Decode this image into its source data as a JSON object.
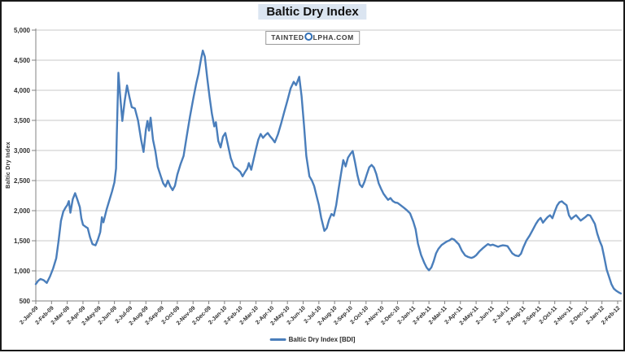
{
  "header": {
    "title": "Baltic Dry Index"
  },
  "watermark": {
    "text_before": "TAINTED",
    "alpha_icon": "alpha-ring-icon",
    "text_after": "LPHA.COM"
  },
  "legend": {
    "label": "Baltic Dry Index [BDI]"
  },
  "colors": {
    "line": "#4a7ebb",
    "title_highlight": "#dbe5f1",
    "gridline": "#c9c9c9",
    "axis": "#808080",
    "alpha_ring": "#2f6eb5"
  },
  "chart_data": {
    "type": "line",
    "title": "Baltic Dry Index",
    "ylabel": "Baltic Dry Index",
    "xlabel": "",
    "ylim": [
      500,
      5000
    ],
    "grid": true,
    "legend_position": "bottom-center",
    "x_unit": "months since 2-Jan-09 (fractional)",
    "y_ticks": [
      500,
      1000,
      1500,
      2000,
      2500,
      3000,
      3500,
      4000,
      4500,
      5000
    ],
    "y_tick_labels": [
      "500",
      "1,000",
      "1,500",
      "2,000",
      "2,500",
      "3,000",
      "3,500",
      "4,000",
      "4,500",
      "5,000"
    ],
    "x_tick_labels": [
      "2-Jan-09",
      "2-Feb-09",
      "2-Mar-09",
      "2-Apr-09",
      "2-May-09",
      "2-Jun-09",
      "2-Jul-09",
      "2-Aug-09",
      "2-Sep-09",
      "2-Oct-09",
      "2-Nov-09",
      "2-Dec-09",
      "2-Jan-10",
      "2-Feb-10",
      "2-Mar-10",
      "2-Apr-10",
      "2-May-10",
      "2-Jun-10",
      "2-Jul-10",
      "2-Aug-10",
      "2-Sep-10",
      "2-Oct-10",
      "2-Nov-10",
      "2-Dec-10",
      "2-Jan-11",
      "2-Feb-11",
      "2-Mar-11",
      "2-Apr-11",
      "2-May-11",
      "2-Jun-11",
      "2-Jul-11",
      "2-Aug-11",
      "2-Sep-11",
      "2-Oct-11",
      "2-Nov-11",
      "2-Dec-11",
      "2-Jan-12",
      "2-Feb-12"
    ],
    "series": [
      {
        "name": "Baltic Dry Index [BDI]",
        "color": "#4a7ebb",
        "points": [
          [
            0,
            780
          ],
          [
            0.15,
            835
          ],
          [
            0.3,
            865
          ],
          [
            0.5,
            845
          ],
          [
            0.7,
            800
          ],
          [
            0.9,
            905
          ],
          [
            1.1,
            1040
          ],
          [
            1.3,
            1210
          ],
          [
            1.45,
            1500
          ],
          [
            1.6,
            1830
          ],
          [
            1.75,
            1985
          ],
          [
            1.9,
            2055
          ],
          [
            2.0,
            2090
          ],
          [
            2.1,
            2160
          ],
          [
            2.2,
            1965
          ],
          [
            2.35,
            2190
          ],
          [
            2.5,
            2290
          ],
          [
            2.65,
            2180
          ],
          [
            2.8,
            2060
          ],
          [
            2.9,
            1870
          ],
          [
            3.0,
            1765
          ],
          [
            3.15,
            1735
          ],
          [
            3.3,
            1710
          ],
          [
            3.45,
            1555
          ],
          [
            3.6,
            1445
          ],
          [
            3.8,
            1425
          ],
          [
            3.95,
            1520
          ],
          [
            4.1,
            1645
          ],
          [
            4.2,
            1890
          ],
          [
            4.3,
            1805
          ],
          [
            4.5,
            2020
          ],
          [
            4.7,
            2190
          ],
          [
            4.85,
            2320
          ],
          [
            5.0,
            2470
          ],
          [
            5.1,
            2700
          ],
          [
            5.15,
            3250
          ],
          [
            5.25,
            4290
          ],
          [
            5.35,
            3950
          ],
          [
            5.5,
            3490
          ],
          [
            5.65,
            3820
          ],
          [
            5.8,
            4080
          ],
          [
            5.95,
            3890
          ],
          [
            6.1,
            3720
          ],
          [
            6.3,
            3700
          ],
          [
            6.5,
            3500
          ],
          [
            6.7,
            3170
          ],
          [
            6.85,
            2975
          ],
          [
            7.0,
            3350
          ],
          [
            7.1,
            3490
          ],
          [
            7.2,
            3330
          ],
          [
            7.3,
            3545
          ],
          [
            7.45,
            3180
          ],
          [
            7.6,
            2990
          ],
          [
            7.75,
            2730
          ],
          [
            7.95,
            2570
          ],
          [
            8.1,
            2455
          ],
          [
            8.25,
            2400
          ],
          [
            8.4,
            2500
          ],
          [
            8.55,
            2405
          ],
          [
            8.7,
            2340
          ],
          [
            8.85,
            2415
          ],
          [
            9.0,
            2600
          ],
          [
            9.2,
            2770
          ],
          [
            9.4,
            2910
          ],
          [
            9.6,
            3240
          ],
          [
            9.8,
            3560
          ],
          [
            10.0,
            3840
          ],
          [
            10.2,
            4110
          ],
          [
            10.35,
            4280
          ],
          [
            10.5,
            4510
          ],
          [
            10.62,
            4660
          ],
          [
            10.75,
            4560
          ],
          [
            10.9,
            4210
          ],
          [
            11.05,
            3890
          ],
          [
            11.2,
            3610
          ],
          [
            11.35,
            3400
          ],
          [
            11.45,
            3470
          ],
          [
            11.6,
            3160
          ],
          [
            11.75,
            3050
          ],
          [
            11.9,
            3230
          ],
          [
            12.05,
            3290
          ],
          [
            12.2,
            3110
          ],
          [
            12.4,
            2870
          ],
          [
            12.6,
            2730
          ],
          [
            12.8,
            2690
          ],
          [
            13.0,
            2645
          ],
          [
            13.15,
            2570
          ],
          [
            13.3,
            2640
          ],
          [
            13.45,
            2700
          ],
          [
            13.55,
            2790
          ],
          [
            13.7,
            2680
          ],
          [
            13.85,
            2850
          ],
          [
            14.0,
            3020
          ],
          [
            14.15,
            3180
          ],
          [
            14.3,
            3275
          ],
          [
            14.45,
            3210
          ],
          [
            14.6,
            3255
          ],
          [
            14.75,
            3290
          ],
          [
            14.9,
            3235
          ],
          [
            15.05,
            3190
          ],
          [
            15.2,
            3135
          ],
          [
            15.4,
            3270
          ],
          [
            15.6,
            3450
          ],
          [
            15.8,
            3640
          ],
          [
            16.0,
            3830
          ],
          [
            16.2,
            4030
          ],
          [
            16.4,
            4140
          ],
          [
            16.55,
            4085
          ],
          [
            16.75,
            4225
          ],
          [
            16.9,
            3900
          ],
          [
            17.05,
            3430
          ],
          [
            17.2,
            2910
          ],
          [
            17.4,
            2570
          ],
          [
            17.55,
            2505
          ],
          [
            17.7,
            2410
          ],
          [
            17.85,
            2250
          ],
          [
            18.0,
            2095
          ],
          [
            18.15,
            1880
          ],
          [
            18.35,
            1665
          ],
          [
            18.5,
            1710
          ],
          [
            18.65,
            1850
          ],
          [
            18.8,
            1945
          ],
          [
            18.95,
            1915
          ],
          [
            19.1,
            2090
          ],
          [
            19.25,
            2355
          ],
          [
            19.4,
            2600
          ],
          [
            19.55,
            2840
          ],
          [
            19.7,
            2735
          ],
          [
            19.85,
            2880
          ],
          [
            20.0,
            2940
          ],
          [
            20.15,
            2990
          ],
          [
            20.3,
            2800
          ],
          [
            20.45,
            2590
          ],
          [
            20.6,
            2435
          ],
          [
            20.75,
            2390
          ],
          [
            20.9,
            2480
          ],
          [
            21.05,
            2605
          ],
          [
            21.2,
            2720
          ],
          [
            21.35,
            2760
          ],
          [
            21.5,
            2715
          ],
          [
            21.65,
            2610
          ],
          [
            21.8,
            2455
          ],
          [
            21.95,
            2365
          ],
          [
            22.1,
            2285
          ],
          [
            22.25,
            2230
          ],
          [
            22.4,
            2180
          ],
          [
            22.55,
            2210
          ],
          [
            22.7,
            2160
          ],
          [
            22.85,
            2135
          ],
          [
            23.0,
            2130
          ],
          [
            23.2,
            2090
          ],
          [
            23.4,
            2050
          ],
          [
            23.6,
            2005
          ],
          [
            23.8,
            1955
          ],
          [
            24.0,
            1820
          ],
          [
            24.15,
            1690
          ],
          [
            24.3,
            1450
          ],
          [
            24.5,
            1265
          ],
          [
            24.7,
            1135
          ],
          [
            24.85,
            1055
          ],
          [
            25.0,
            1010
          ],
          [
            25.15,
            1055
          ],
          [
            25.3,
            1160
          ],
          [
            25.45,
            1290
          ],
          [
            25.6,
            1365
          ],
          [
            25.8,
            1430
          ],
          [
            26.0,
            1465
          ],
          [
            26.15,
            1490
          ],
          [
            26.3,
            1505
          ],
          [
            26.45,
            1535
          ],
          [
            26.6,
            1520
          ],
          [
            26.75,
            1480
          ],
          [
            26.9,
            1440
          ],
          [
            27.1,
            1330
          ],
          [
            27.3,
            1255
          ],
          [
            27.5,
            1230
          ],
          [
            27.7,
            1215
          ],
          [
            27.85,
            1230
          ],
          [
            28.0,
            1260
          ],
          [
            28.2,
            1320
          ],
          [
            28.4,
            1370
          ],
          [
            28.6,
            1415
          ],
          [
            28.75,
            1445
          ],
          [
            28.9,
            1425
          ],
          [
            29.05,
            1435
          ],
          [
            29.2,
            1420
          ],
          [
            29.4,
            1400
          ],
          [
            29.55,
            1415
          ],
          [
            29.7,
            1425
          ],
          [
            29.85,
            1420
          ],
          [
            30.0,
            1410
          ],
          [
            30.15,
            1350
          ],
          [
            30.3,
            1290
          ],
          [
            30.5,
            1255
          ],
          [
            30.7,
            1245
          ],
          [
            30.85,
            1285
          ],
          [
            31.0,
            1390
          ],
          [
            31.2,
            1505
          ],
          [
            31.4,
            1585
          ],
          [
            31.6,
            1680
          ],
          [
            31.8,
            1780
          ],
          [
            31.95,
            1840
          ],
          [
            32.1,
            1880
          ],
          [
            32.25,
            1800
          ],
          [
            32.4,
            1850
          ],
          [
            32.55,
            1895
          ],
          [
            32.7,
            1925
          ],
          [
            32.85,
            1875
          ],
          [
            33.0,
            1985
          ],
          [
            33.15,
            2085
          ],
          [
            33.3,
            2140
          ],
          [
            33.45,
            2155
          ],
          [
            33.6,
            2120
          ],
          [
            33.75,
            2090
          ],
          [
            33.9,
            1925
          ],
          [
            34.05,
            1860
          ],
          [
            34.2,
            1895
          ],
          [
            34.35,
            1925
          ],
          [
            34.5,
            1880
          ],
          [
            34.65,
            1835
          ],
          [
            34.8,
            1865
          ],
          [
            34.95,
            1895
          ],
          [
            35.1,
            1930
          ],
          [
            35.25,
            1920
          ],
          [
            35.4,
            1850
          ],
          [
            35.55,
            1780
          ],
          [
            35.7,
            1620
          ],
          [
            35.85,
            1500
          ],
          [
            36.0,
            1405
          ],
          [
            36.15,
            1220
          ],
          [
            36.3,
            1020
          ],
          [
            36.45,
            900
          ],
          [
            36.6,
            780
          ],
          [
            36.75,
            705
          ],
          [
            36.9,
            670
          ],
          [
            37.05,
            645
          ],
          [
            37.2,
            625
          ]
        ]
      }
    ]
  }
}
